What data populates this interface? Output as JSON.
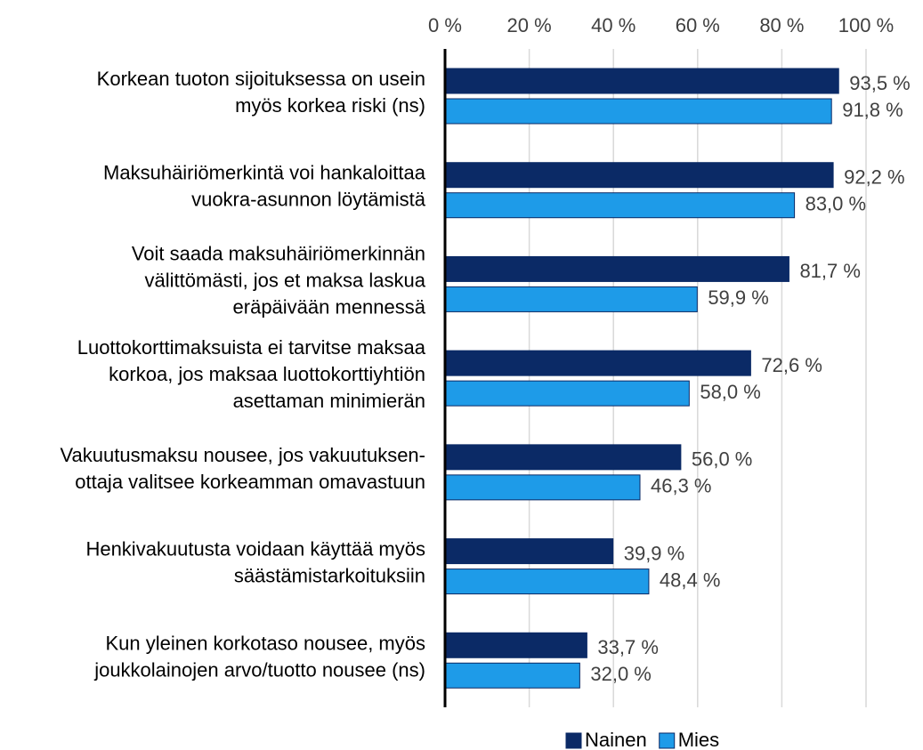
{
  "chart_data": {
    "type": "bar",
    "orientation": "horizontal",
    "categories": [
      "Korkean tuoton sijoituksessa on usein\nmyös korkea riski (ns)",
      "Maksuhäiriömerkintä voi hankaloittaa\nvuokra-asunnon löytämistä",
      "Voit saada maksuhäiriömerkinnän\nvälittömästi, jos et maksa laskua\neräpäivään mennessä",
      "Luottokorttimaksuista ei tarvitse maksaa\nkorkoa, jos maksaa luottokorttiyhtiön\nasettaman minimierän",
      "Vakuutusmaksu nousee, jos vakuutuksen-\nottaja valitsee korkeamman omavastuun",
      "Henkivakuutusta voidaan käyttää myös\nsäästämistarkoituksiin",
      "Kun yleinen korkotaso nousee, myös\njoukkolainojen arvo/tuotto nousee (ns)"
    ],
    "series": [
      {
        "name": "Nainen",
        "color": "#0b2a66",
        "values": [
          93.5,
          92.2,
          81.7,
          72.6,
          56.0,
          39.9,
          33.7
        ],
        "value_labels": [
          "93,5 %",
          "92,2 %",
          "81,7 %",
          "72,6 %",
          "56,0 %",
          "39,9 %",
          "33,7 %"
        ]
      },
      {
        "name": "Mies",
        "color": "#1e9be8",
        "values": [
          91.8,
          83.0,
          59.9,
          58.0,
          46.3,
          48.4,
          32.0
        ],
        "value_labels": [
          "91,8 %",
          "83,0 %",
          "59,9 %",
          "58,0 %",
          "46,3 %",
          "48,4 %",
          "32,0 %"
        ]
      }
    ],
    "xlim": [
      0,
      100
    ],
    "xticks": [
      {
        "value": 0,
        "label": "0 %"
      },
      {
        "value": 20,
        "label": "20 %"
      },
      {
        "value": 40,
        "label": "40 %"
      },
      {
        "value": 60,
        "label": "60 %"
      },
      {
        "value": 80,
        "label": "80 %"
      },
      {
        "value": 100,
        "label": "100 %"
      }
    ],
    "grid": true,
    "legend": "bottom"
  }
}
